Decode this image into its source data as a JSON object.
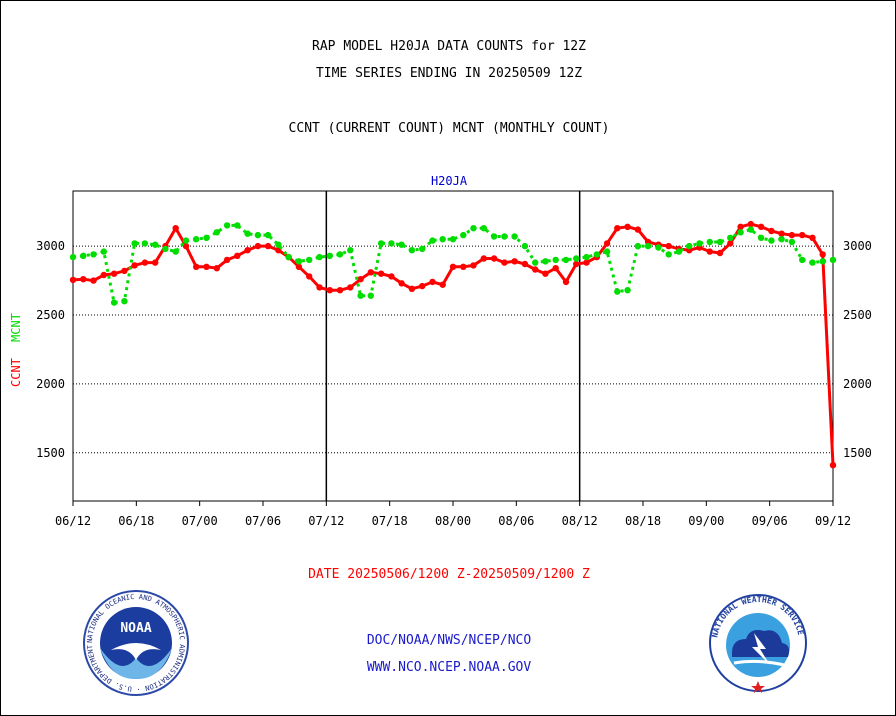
{
  "header": {
    "title_line1": "RAP MODEL H20JA DATA COUNTS for 12Z",
    "title_line2": "TIME SERIES ENDING IN 20250509 12Z",
    "subtitle": "CCNT (CURRENT COUNT) MCNT (MONTHLY COUNT)"
  },
  "chart_data": {
    "type": "line",
    "title": "H20JA",
    "ylabel_left": "CCNT",
    "ylabel_right": "MCNT",
    "ylim": [
      1150,
      3400
    ],
    "yticks": [
      1500,
      2000,
      2500,
      3000
    ],
    "xlabels": [
      "06/12",
      "06/18",
      "07/00",
      "07/06",
      "07/12",
      "07/18",
      "08/00",
      "08/06",
      "08/12",
      "08/18",
      "09/00",
      "09/06",
      "09/12"
    ],
    "date_range": "DATE 20250506/1200 Z-20250509/1200 Z",
    "grid": true,
    "colors": {
      "ccnt": "#ff0000",
      "mcnt": "#00dd00",
      "axis_label": "#0000cc"
    },
    "series": [
      {
        "name": "CCNT",
        "color": "#ff0000",
        "values": [
          2755,
          2760,
          2750,
          2790,
          2800,
          2820,
          2860,
          2880,
          2880,
          3000,
          3130,
          3000,
          2850,
          2850,
          2840,
          2900,
          2930,
          2970,
          3000,
          3000,
          2970,
          2920,
          2850,
          2780,
          2700,
          2680,
          2680,
          2700,
          2760,
          2810,
          2800,
          2780,
          2730,
          2690,
          2710,
          2740,
          2720,
          2850,
          2850,
          2860,
          2910,
          2910,
          2880,
          2890,
          2870,
          2830,
          2800,
          2840,
          2740,
          2870,
          2880,
          2920,
          3020,
          3130,
          3140,
          3120,
          3030,
          3010,
          3000,
          2980,
          2970,
          2990,
          2960,
          2950,
          3020,
          3140,
          3160,
          3140,
          3110,
          3090,
          3080,
          3080,
          3060,
          2940,
          1410
        ]
      },
      {
        "name": "MCNT",
        "color": "#00dd00",
        "values": [
          2920,
          2930,
          2940,
          2960,
          2590,
          2600,
          3020,
          3020,
          3010,
          2980,
          2960,
          3040,
          3050,
          3060,
          3100,
          3150,
          3150,
          3090,
          3080,
          3080,
          3010,
          2920,
          2890,
          2900,
          2920,
          2930,
          2940,
          2970,
          2640,
          2640,
          3020,
          3020,
          3010,
          2970,
          2980,
          3040,
          3050,
          3050,
          3080,
          3130,
          3130,
          3070,
          3070,
          3070,
          3000,
          2880,
          2890,
          2900,
          2900,
          2910,
          2920,
          2940,
          2960,
          2670,
          2680,
          3000,
          3000,
          2990,
          2940,
          2960,
          3000,
          3020,
          3030,
          3030,
          3060,
          3100,
          3120,
          3060,
          3040,
          3050,
          3030,
          2900,
          2880,
          2890,
          2900
        ]
      }
    ]
  },
  "footer": {
    "date_range_label": "DATE 20250506/1200 Z-20250509/1200 Z",
    "org_line": "DOC/NOAA/NWS/NCEP/NCO",
    "url_line": "WWW.NCO.NCEP.NOAA.GOV",
    "noaa_logo_text": "NOAA",
    "noaa_ring_text": "NATIONAL OCEANIC AND ATMOSPHERIC ADMINISTRATION · U.S. DEPARTMENT OF COMMERCE",
    "nws_ring_text": "NATIONAL WEATHER SERVICE"
  }
}
